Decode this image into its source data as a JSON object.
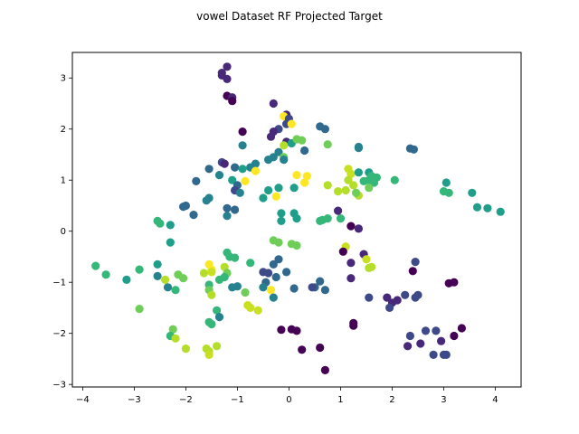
{
  "chart_data": {
    "type": "scatter",
    "title": "vowel Dataset RF Projected Target",
    "xlabel": "",
    "ylabel": "",
    "xlim": [
      -4.2,
      4.5
    ],
    "ylim": [
      -3.05,
      3.5
    ],
    "xticks": [
      -4,
      -3,
      -2,
      -1,
      0,
      1,
      2,
      3,
      4
    ],
    "yticks": [
      -3,
      -2,
      -1,
      0,
      1,
      2,
      3
    ],
    "grid": false,
    "legend": "none",
    "colormap": "viridis",
    "color_range": [
      0,
      10
    ],
    "palette": [
      "#440154",
      "#482878",
      "#3e4989",
      "#31688e",
      "#26828e",
      "#1f9e89",
      "#35b779",
      "#6ece58",
      "#b5de2b",
      "#c8e020",
      "#fde725"
    ],
    "points": [
      {
        "x": -1.3,
        "y": 3.05,
        "c": 1
      },
      {
        "x": -1.3,
        "y": 3.1,
        "c": 1
      },
      {
        "x": -1.2,
        "y": 3.22,
        "c": 1
      },
      {
        "x": -1.2,
        "y": 2.98,
        "c": 1
      },
      {
        "x": -1.2,
        "y": 2.65,
        "c": 0
      },
      {
        "x": -1.1,
        "y": 2.62,
        "c": 1
      },
      {
        "x": -1.1,
        "y": 2.55,
        "c": 0
      },
      {
        "x": -0.3,
        "y": 2.5,
        "c": 1
      },
      {
        "x": -0.05,
        "y": 2.28,
        "c": 1
      },
      {
        "x": -0.1,
        "y": 2.25,
        "c": 10
      },
      {
        "x": 0.0,
        "y": 2.2,
        "c": 2
      },
      {
        "x": -0.05,
        "y": 2.1,
        "c": 2
      },
      {
        "x": 0.05,
        "y": 2.1,
        "c": 10
      },
      {
        "x": -0.2,
        "y": 2.0,
        "c": 2
      },
      {
        "x": -0.3,
        "y": 1.95,
        "c": 1
      },
      {
        "x": -0.35,
        "y": 1.85,
        "c": 1
      },
      {
        "x": 0.6,
        "y": 2.05,
        "c": 3
      },
      {
        "x": 0.7,
        "y": 2.0,
        "c": 3
      },
      {
        "x": -0.9,
        "y": 1.95,
        "c": 0
      },
      {
        "x": -0.05,
        "y": 1.75,
        "c": 1
      },
      {
        "x": 0.05,
        "y": 1.72,
        "c": 5
      },
      {
        "x": 0.15,
        "y": 1.8,
        "c": 7
      },
      {
        "x": 0.25,
        "y": 1.78,
        "c": 7
      },
      {
        "x": -0.1,
        "y": 1.68,
        "c": 8
      },
      {
        "x": -0.9,
        "y": 1.68,
        "c": 4
      },
      {
        "x": -0.2,
        "y": 1.55,
        "c": 4
      },
      {
        "x": 0.3,
        "y": 1.58,
        "c": 3
      },
      {
        "x": 0.75,
        "y": 1.7,
        "c": 7
      },
      {
        "x": 1.35,
        "y": 1.65,
        "c": 4
      },
      {
        "x": 1.35,
        "y": 1.63,
        "c": 4
      },
      {
        "x": 2.35,
        "y": 1.62,
        "c": 3
      },
      {
        "x": 2.42,
        "y": 1.6,
        "c": 3
      },
      {
        "x": -0.1,
        "y": 1.45,
        "c": 7
      },
      {
        "x": -0.4,
        "y": 1.4,
        "c": 4
      },
      {
        "x": -0.3,
        "y": 1.45,
        "c": 4
      },
      {
        "x": -0.1,
        "y": 1.4,
        "c": 4
      },
      {
        "x": -1.3,
        "y": 1.35,
        "c": 2
      },
      {
        "x": -1.25,
        "y": 1.32,
        "c": 1
      },
      {
        "x": -0.65,
        "y": 1.32,
        "c": 4
      },
      {
        "x": -0.75,
        "y": 1.25,
        "c": 4
      },
      {
        "x": -1.05,
        "y": 1.25,
        "c": 3
      },
      {
        "x": -0.9,
        "y": 1.22,
        "c": 5
      },
      {
        "x": -1.55,
        "y": 1.22,
        "c": 3
      },
      {
        "x": -0.65,
        "y": 1.18,
        "c": 10
      },
      {
        "x": 0.15,
        "y": 1.1,
        "c": 10
      },
      {
        "x": 0.35,
        "y": 1.08,
        "c": 10
      },
      {
        "x": 1.15,
        "y": 1.22,
        "c": 9
      },
      {
        "x": 1.2,
        "y": 1.12,
        "c": 9
      },
      {
        "x": 1.35,
        "y": 1.15,
        "c": 5
      },
      {
        "x": 1.55,
        "y": 1.15,
        "c": 5
      },
      {
        "x": 1.6,
        "y": 1.08,
        "c": 6
      },
      {
        "x": -1.35,
        "y": 1.1,
        "c": 4
      },
      {
        "x": -1.1,
        "y": 1.0,
        "c": 5
      },
      {
        "x": -0.85,
        "y": 0.98,
        "c": 10
      },
      {
        "x": -1.8,
        "y": 0.98,
        "c": 3
      },
      {
        "x": -1.0,
        "y": 0.9,
        "c": 3
      },
      {
        "x": -1.05,
        "y": 0.8,
        "c": 2
      },
      {
        "x": -0.95,
        "y": 0.75,
        "c": 4
      },
      {
        "x": 1.15,
        "y": 1.0,
        "c": 8
      },
      {
        "x": 1.45,
        "y": 0.98,
        "c": 6
      },
      {
        "x": 1.55,
        "y": 1.0,
        "c": 6
      },
      {
        "x": 1.7,
        "y": 1.05,
        "c": 6
      },
      {
        "x": 1.65,
        "y": 0.95,
        "c": 6
      },
      {
        "x": 2.05,
        "y": 1.0,
        "c": 6
      },
      {
        "x": 1.55,
        "y": 0.85,
        "c": 7
      },
      {
        "x": 1.25,
        "y": 0.9,
        "c": 8
      },
      {
        "x": 0.3,
        "y": 0.95,
        "c": 10
      },
      {
        "x": 0.75,
        "y": 0.9,
        "c": 8
      },
      {
        "x": -0.4,
        "y": 0.8,
        "c": 5
      },
      {
        "x": -0.2,
        "y": 0.85,
        "c": 5
      },
      {
        "x": 0.1,
        "y": 0.85,
        "c": 5
      },
      {
        "x": -0.5,
        "y": 0.65,
        "c": 5
      },
      {
        "x": -0.25,
        "y": 0.68,
        "c": 10
      },
      {
        "x": 0.95,
        "y": 0.78,
        "c": 8
      },
      {
        "x": 1.1,
        "y": 0.8,
        "c": 8
      },
      {
        "x": 1.35,
        "y": 0.7,
        "c": 8
      },
      {
        "x": 1.3,
        "y": 0.75,
        "c": 7
      },
      {
        "x": 3.0,
        "y": 0.78,
        "c": 6
      },
      {
        "x": 3.1,
        "y": 0.75,
        "c": 6
      },
      {
        "x": 3.55,
        "y": 0.75,
        "c": 5
      },
      {
        "x": 3.05,
        "y": 0.95,
        "c": 5
      },
      {
        "x": -1.55,
        "y": 0.65,
        "c": 4
      },
      {
        "x": -1.6,
        "y": 0.6,
        "c": 4
      },
      {
        "x": -2.0,
        "y": 0.5,
        "c": 3
      },
      {
        "x": -2.05,
        "y": 0.48,
        "c": 3
      },
      {
        "x": -1.2,
        "y": 0.45,
        "c": 3
      },
      {
        "x": -1.05,
        "y": 0.42,
        "c": 3
      },
      {
        "x": -1.85,
        "y": 0.32,
        "c": 3
      },
      {
        "x": -1.2,
        "y": 0.3,
        "c": 4
      },
      {
        "x": -0.15,
        "y": 0.35,
        "c": 5
      },
      {
        "x": 0.1,
        "y": 0.35,
        "c": 5
      },
      {
        "x": 0.15,
        "y": 0.25,
        "c": 5
      },
      {
        "x": -0.15,
        "y": 0.2,
        "c": 5
      },
      {
        "x": 0.6,
        "y": 0.2,
        "c": 6
      },
      {
        "x": 0.75,
        "y": 0.25,
        "c": 6
      },
      {
        "x": 0.65,
        "y": 0.22,
        "c": 6
      },
      {
        "x": 1.0,
        "y": 0.25,
        "c": 6
      },
      {
        "x": 0.95,
        "y": 0.4,
        "c": 1
      },
      {
        "x": 3.65,
        "y": 0.47,
        "c": 5
      },
      {
        "x": 3.85,
        "y": 0.45,
        "c": 5
      },
      {
        "x": 4.1,
        "y": 0.38,
        "c": 5
      },
      {
        "x": -2.55,
        "y": 0.2,
        "c": 6
      },
      {
        "x": -2.5,
        "y": 0.15,
        "c": 6
      },
      {
        "x": -2.3,
        "y": 0.12,
        "c": 5
      },
      {
        "x": 1.2,
        "y": 0.1,
        "c": 0
      },
      {
        "x": 1.35,
        "y": 0.05,
        "c": 1
      },
      {
        "x": -2.3,
        "y": -0.22,
        "c": 5
      },
      {
        "x": -0.3,
        "y": -0.18,
        "c": 7
      },
      {
        "x": -0.2,
        "y": -0.22,
        "c": 7
      },
      {
        "x": 0.05,
        "y": -0.25,
        "c": 7
      },
      {
        "x": 0.15,
        "y": -0.28,
        "c": 7
      },
      {
        "x": 1.1,
        "y": -0.3,
        "c": 9
      },
      {
        "x": 1.05,
        "y": -0.4,
        "c": 0
      },
      {
        "x": 1.45,
        "y": -0.45,
        "c": 1
      },
      {
        "x": -1.2,
        "y": -0.42,
        "c": 6
      },
      {
        "x": -1.15,
        "y": -0.5,
        "c": 6
      },
      {
        "x": -1.05,
        "y": -0.52,
        "c": 6
      },
      {
        "x": -0.75,
        "y": -0.62,
        "c": 6
      },
      {
        "x": -0.2,
        "y": -0.55,
        "c": 3
      },
      {
        "x": -0.3,
        "y": -0.65,
        "c": 3
      },
      {
        "x": 1.2,
        "y": -0.62,
        "c": 1
      },
      {
        "x": 1.5,
        "y": -0.55,
        "c": 9
      },
      {
        "x": 2.45,
        "y": -0.6,
        "c": 2
      },
      {
        "x": 2.4,
        "y": -0.78,
        "c": 0
      },
      {
        "x": -1.55,
        "y": -0.65,
        "c": 10
      },
      {
        "x": -1.5,
        "y": -0.75,
        "c": 10
      },
      {
        "x": -1.25,
        "y": -0.7,
        "c": 8
      },
      {
        "x": -0.5,
        "y": -0.8,
        "c": 2
      },
      {
        "x": -0.4,
        "y": -0.82,
        "c": 2
      },
      {
        "x": -0.05,
        "y": -0.8,
        "c": 3
      },
      {
        "x": 1.55,
        "y": -0.72,
        "c": 8
      },
      {
        "x": 1.6,
        "y": -0.7,
        "c": 8
      },
      {
        "x": -3.75,
        "y": -0.68,
        "c": 6
      },
      {
        "x": -3.55,
        "y": -0.85,
        "c": 6
      },
      {
        "x": -2.9,
        "y": -0.75,
        "c": 6
      },
      {
        "x": -2.55,
        "y": -0.65,
        "c": 5
      },
      {
        "x": -2.55,
        "y": -0.88,
        "c": 4
      },
      {
        "x": -2.4,
        "y": -0.95,
        "c": 8
      },
      {
        "x": -2.15,
        "y": -0.85,
        "c": 7
      },
      {
        "x": -2.05,
        "y": -0.92,
        "c": 7
      },
      {
        "x": -1.65,
        "y": -0.82,
        "c": 8
      },
      {
        "x": -1.5,
        "y": -0.8,
        "c": 9
      },
      {
        "x": -1.35,
        "y": -0.95,
        "c": 6
      },
      {
        "x": -1.2,
        "y": -0.82,
        "c": 7
      },
      {
        "x": -1.25,
        "y": -0.9,
        "c": 6
      },
      {
        "x": -0.45,
        "y": -1.0,
        "c": 3
      },
      {
        "x": -0.25,
        "y": -0.9,
        "c": 3
      },
      {
        "x": 0.6,
        "y": -0.98,
        "c": 3
      },
      {
        "x": 0.7,
        "y": -1.15,
        "c": 3
      },
      {
        "x": 0.5,
        "y": -1.1,
        "c": 3
      },
      {
        "x": 0.45,
        "y": -1.1,
        "c": 2
      },
      {
        "x": 1.2,
        "y": -0.92,
        "c": 1
      },
      {
        "x": 3.1,
        "y": -1.02,
        "c": 0
      },
      {
        "x": 3.2,
        "y": -1.0,
        "c": 0
      },
      {
        "x": -3.15,
        "y": -0.95,
        "c": 5
      },
      {
        "x": -2.35,
        "y": -1.1,
        "c": 4
      },
      {
        "x": -2.2,
        "y": -1.15,
        "c": 6
      },
      {
        "x": -1.55,
        "y": -1.05,
        "c": 6
      },
      {
        "x": -1.55,
        "y": -1.15,
        "c": 7
      },
      {
        "x": -1.5,
        "y": -1.25,
        "c": 8
      },
      {
        "x": -1.1,
        "y": -1.1,
        "c": 4
      },
      {
        "x": -1.0,
        "y": -1.08,
        "c": 4
      },
      {
        "x": -0.85,
        "y": -1.2,
        "c": 7
      },
      {
        "x": -0.5,
        "y": -1.1,
        "c": 4
      },
      {
        "x": -0.35,
        "y": -1.15,
        "c": 10
      },
      {
        "x": 0.1,
        "y": -1.12,
        "c": 3
      },
      {
        "x": 1.55,
        "y": -1.3,
        "c": 2
      },
      {
        "x": 1.9,
        "y": -1.3,
        "c": 1
      },
      {
        "x": 2.1,
        "y": -1.35,
        "c": 1
      },
      {
        "x": 2.25,
        "y": -1.25,
        "c": 2
      },
      {
        "x": 2.5,
        "y": -1.25,
        "c": 2
      },
      {
        "x": 2.45,
        "y": -1.3,
        "c": 2
      },
      {
        "x": -0.3,
        "y": -1.3,
        "c": 4
      },
      {
        "x": 2.0,
        "y": -1.4,
        "c": 1
      },
      {
        "x": 1.95,
        "y": -1.5,
        "c": 2
      },
      {
        "x": -0.8,
        "y": -1.45,
        "c": 9
      },
      {
        "x": -0.75,
        "y": -1.5,
        "c": 9
      },
      {
        "x": -0.6,
        "y": -1.55,
        "c": 9
      },
      {
        "x": -2.9,
        "y": -1.52,
        "c": 7
      },
      {
        "x": -1.4,
        "y": -1.55,
        "c": 6
      },
      {
        "x": -1.55,
        "y": -1.78,
        "c": 6
      },
      {
        "x": -1.5,
        "y": -1.82,
        "c": 6
      },
      {
        "x": -1.35,
        "y": -1.68,
        "c": 4
      },
      {
        "x": 1.25,
        "y": -1.8,
        "c": 0
      },
      {
        "x": 1.25,
        "y": -1.85,
        "c": 0
      },
      {
        "x": -0.15,
        "y": -1.93,
        "c": 0
      },
      {
        "x": 0.05,
        "y": -1.92,
        "c": 0
      },
      {
        "x": 0.15,
        "y": -1.95,
        "c": 0
      },
      {
        "x": -2.25,
        "y": -1.92,
        "c": 7
      },
      {
        "x": -2.3,
        "y": -2.05,
        "c": 6
      },
      {
        "x": -2.2,
        "y": -2.1,
        "c": 8
      },
      {
        "x": 2.35,
        "y": -2.05,
        "c": 2
      },
      {
        "x": 2.65,
        "y": -1.95,
        "c": 2
      },
      {
        "x": 2.85,
        "y": -1.95,
        "c": 2
      },
      {
        "x": 3.2,
        "y": -2.05,
        "c": 0
      },
      {
        "x": 3.35,
        "y": -1.9,
        "c": 0
      },
      {
        "x": 2.95,
        "y": -2.15,
        "c": 1
      },
      {
        "x": 2.55,
        "y": -2.2,
        "c": 1
      },
      {
        "x": 2.3,
        "y": -2.25,
        "c": 1
      },
      {
        "x": -2.0,
        "y": -2.3,
        "c": 8
      },
      {
        "x": -1.6,
        "y": -2.3,
        "c": 8
      },
      {
        "x": -1.55,
        "y": -2.35,
        "c": 8
      },
      {
        "x": -1.4,
        "y": -2.25,
        "c": 8
      },
      {
        "x": -1.55,
        "y": -2.42,
        "c": 9
      },
      {
        "x": 0.25,
        "y": -2.32,
        "c": 0
      },
      {
        "x": 0.6,
        "y": -2.28,
        "c": 0
      },
      {
        "x": 2.8,
        "y": -2.42,
        "c": 2
      },
      {
        "x": 3.0,
        "y": -2.42,
        "c": 2
      },
      {
        "x": 3.05,
        "y": -2.42,
        "c": 2
      },
      {
        "x": 0.7,
        "y": -2.72,
        "c": 0
      }
    ]
  }
}
